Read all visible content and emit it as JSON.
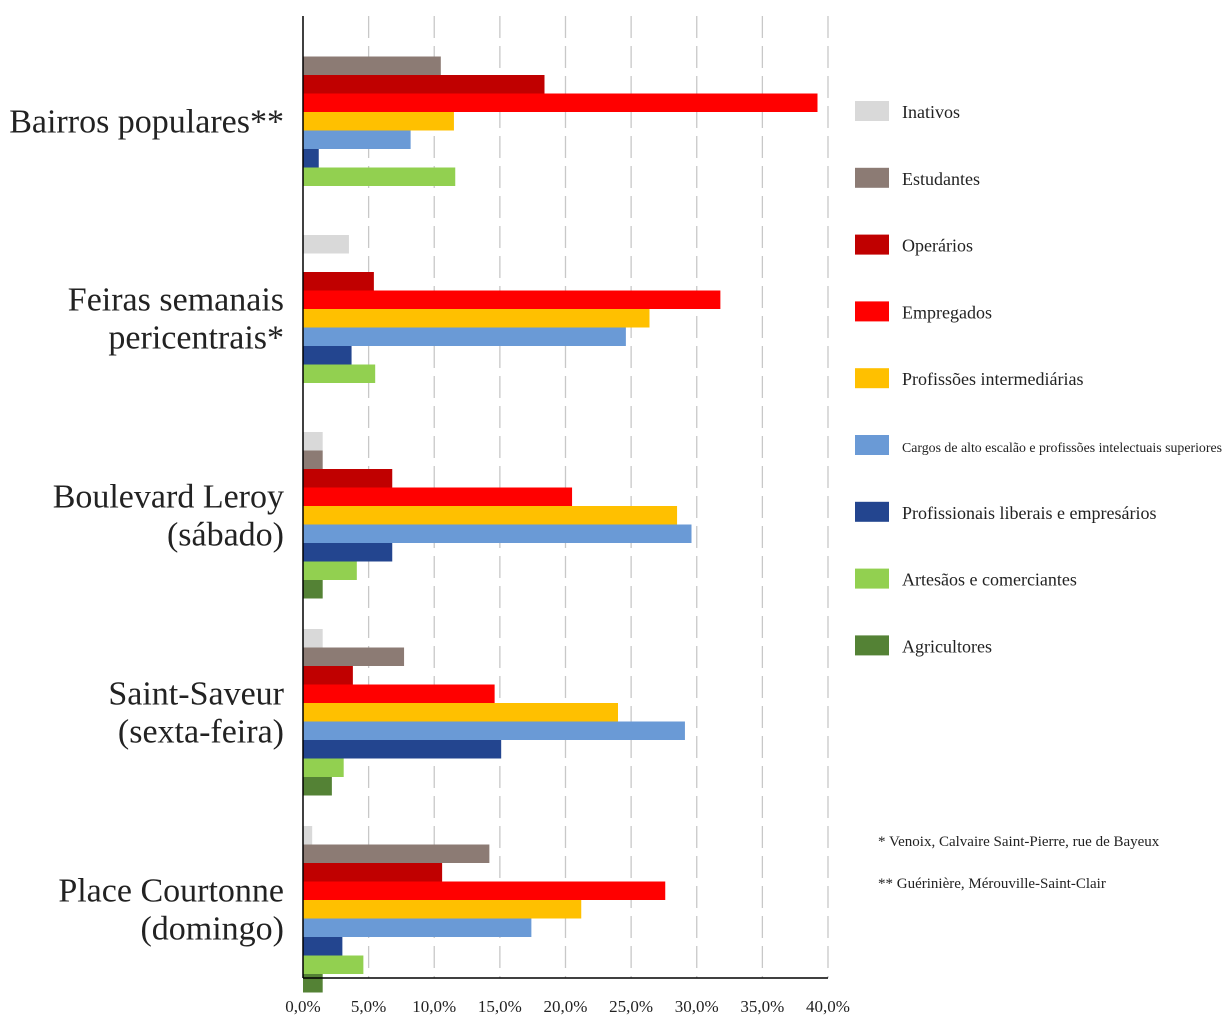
{
  "chart_data": {
    "type": "bar",
    "orientation": "horizontal",
    "categories": [
      [
        "Bairros populares**"
      ],
      [
        "Feiras semanais",
        "pericentrais*"
      ],
      [
        "Boulevard Leroy",
        "(sábado)"
      ],
      [
        "Saint-Saveur",
        "(sexta-feira)"
      ],
      [
        "Place Courtonne",
        "(domingo)"
      ]
    ],
    "series": [
      {
        "name": "Inativos",
        "color": "#d9d9d9",
        "values": [
          0,
          3.5,
          1.5,
          1.5,
          0.7
        ]
      },
      {
        "name": "Estudantes",
        "color": "#8c7b74",
        "values": [
          10.5,
          0,
          1.5,
          7.7,
          14.2
        ]
      },
      {
        "name": "Operários",
        "color": "#c00000",
        "values": [
          18.4,
          5.4,
          6.8,
          3.8,
          10.6
        ]
      },
      {
        "name": "Empregados",
        "color": "#ff0000",
        "values": [
          39.2,
          31.8,
          20.5,
          14.6,
          27.6
        ]
      },
      {
        "name": "Profissões intermediárias",
        "color": "#ffc000",
        "values": [
          11.5,
          26.4,
          28.5,
          24.0,
          21.2
        ]
      },
      {
        "name": "Cargos de alto escalão e profissões intelectuais superiores",
        "color": "#6a9ad6",
        "values": [
          8.2,
          24.6,
          29.6,
          29.1,
          17.4
        ]
      },
      {
        "name": "Profissionais liberais e empresários",
        "color": "#23458f",
        "values": [
          1.2,
          3.7,
          6.8,
          15.1,
          3.0
        ]
      },
      {
        "name": "Artesãos e comerciantes",
        "color": "#92d050",
        "values": [
          11.6,
          5.5,
          4.1,
          3.1,
          4.6
        ]
      },
      {
        "name": "Agricultores",
        "color": "#548235",
        "values": [
          0,
          0,
          1.5,
          2.2,
          1.5
        ]
      }
    ],
    "xlim": [
      0,
      40
    ],
    "xticks": [
      "0,0%",
      "5,0%",
      "10,0%",
      "15,0%",
      "20,0%",
      "25,0%",
      "30,0%",
      "35,0%",
      "40,0%"
    ],
    "grid": "vertical-dashed",
    "legend": "right"
  },
  "notes": [
    "* Venoix, Calvaire Saint-Pierre, rue de Bayeux",
    "** Guérinière, Mérouville-Saint-Clair"
  ]
}
